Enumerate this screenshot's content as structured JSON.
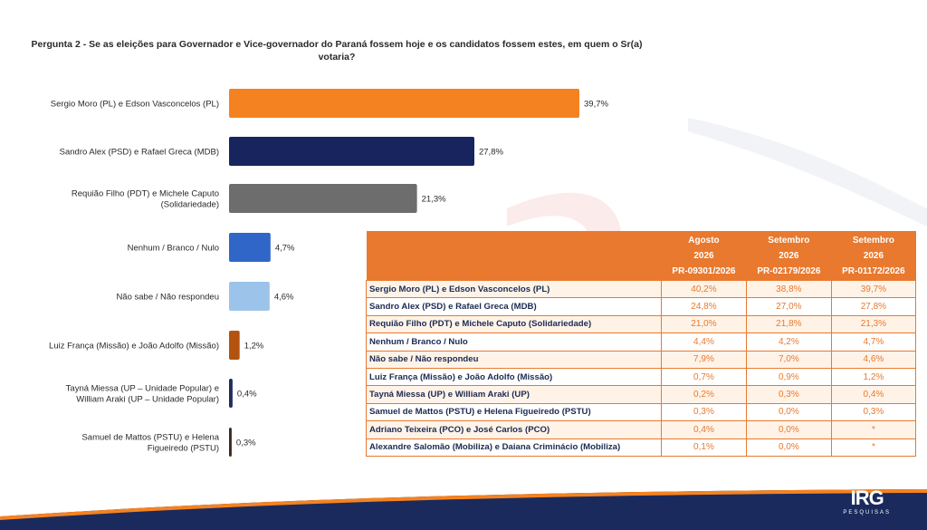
{
  "question": "Pergunta 2 - Se as eleições para Governador e Vice-governador do Paraná fossem hoje e os candidatos fossem estes, em quem o Sr(a) votaria?",
  "colors": {
    "orange": "#f58220",
    "navy": "#17245e",
    "gray": "#6d6d6d",
    "blue": "#2f66c8",
    "light_blue": "#9cc3ea",
    "brown": "#b4530f",
    "dark_navy": "#1f2c5e",
    "dark_brown": "#3e2a1e",
    "table_header": "#e8792e"
  },
  "chart_data": {
    "type": "bar",
    "orientation": "horizontal",
    "title": "",
    "xlabel": "",
    "ylabel": "",
    "xlim": [
      0,
      40
    ],
    "grid": false,
    "categories": [
      [
        "Sergio Moro (PL) e Edson Vasconcelos (PL)"
      ],
      [
        "Sandro Alex (PSD) e Rafael Greca (MDB)"
      ],
      [
        "Requião Filho (PDT) e Michele Caputo",
        "(Solidariedade)"
      ],
      [
        "Nenhum / Branco / Nulo"
      ],
      [
        "Não sabe / Não respondeu"
      ],
      [
        "Luiz França (Missão) e João Adolfo (Missão)"
      ],
      [
        "Tayná Miessa (UP – Unidade Popular) e",
        "William Araki (UP – Unidade Popular)"
      ],
      [
        "Samuel de Mattos (PSTU) e Helena",
        "Figueiredo (PSTU)"
      ]
    ],
    "values": [
      39.7,
      27.8,
      21.3,
      4.7,
      4.6,
      1.2,
      0.4,
      0.3
    ],
    "value_labels": [
      "39,7%",
      "27,8%",
      "21,3%",
      "4,7%",
      "4,6%",
      "1,2%",
      "0,4%",
      "0,3%"
    ],
    "bar_colors": [
      "#f58220",
      "#17245e",
      "#6d6d6d",
      "#2f66c8",
      "#9cc3ea",
      "#b4530f",
      "#1f2c5e",
      "#3e2a1e"
    ]
  },
  "table": {
    "headers": [
      [
        "",
        "",
        ""
      ],
      [
        "Agosto",
        "2026",
        "PR-09301/2026"
      ],
      [
        "Setembro",
        "2026",
        "PR-02179/2026"
      ],
      [
        "Setembro",
        "2026",
        "PR-01172/2026"
      ]
    ],
    "rows": [
      [
        "Sergio Moro (PL) e Edson Vasconcelos (PL)",
        "40,2%",
        "38,8%",
        "39,7%"
      ],
      [
        "Sandro Alex (PSD) e Rafael Greca (MDB)",
        "24,8%",
        "27,0%",
        "27,8%"
      ],
      [
        "Requião Filho (PDT) e Michele Caputo (Solidariedade)",
        "21,0%",
        "21,8%",
        "21,3%"
      ],
      [
        "Nenhum / Branco / Nulo",
        "4,4%",
        "4,2%",
        "4,7%"
      ],
      [
        "Não sabe / Não respondeu",
        "7,9%",
        "7,0%",
        "4,6%"
      ],
      [
        "Luiz França (Missão) e João Adolfo (Missão)",
        "0,7%",
        "0,9%",
        "1,2%"
      ],
      [
        "Tayná Miessa (UP) e William Araki (UP)",
        "0,2%",
        "0,3%",
        "0,4%"
      ],
      [
        "Samuel de Mattos (PSTU) e Helena Figueiredo (PSTU)",
        "0,3%",
        "0,0%",
        "0,3%"
      ],
      [
        "Adriano Teixeira (PCO) e José Carlos (PCO)",
        "0,4%",
        "0,0%",
        "*"
      ],
      [
        "Alexandre Salomão (Mobiliza) e Daiana Criminácio (Mobiliza)",
        "0,1%",
        "0,0%",
        "*"
      ]
    ]
  },
  "logo": {
    "main": "IRG",
    "sub": "PESQUISAS"
  }
}
